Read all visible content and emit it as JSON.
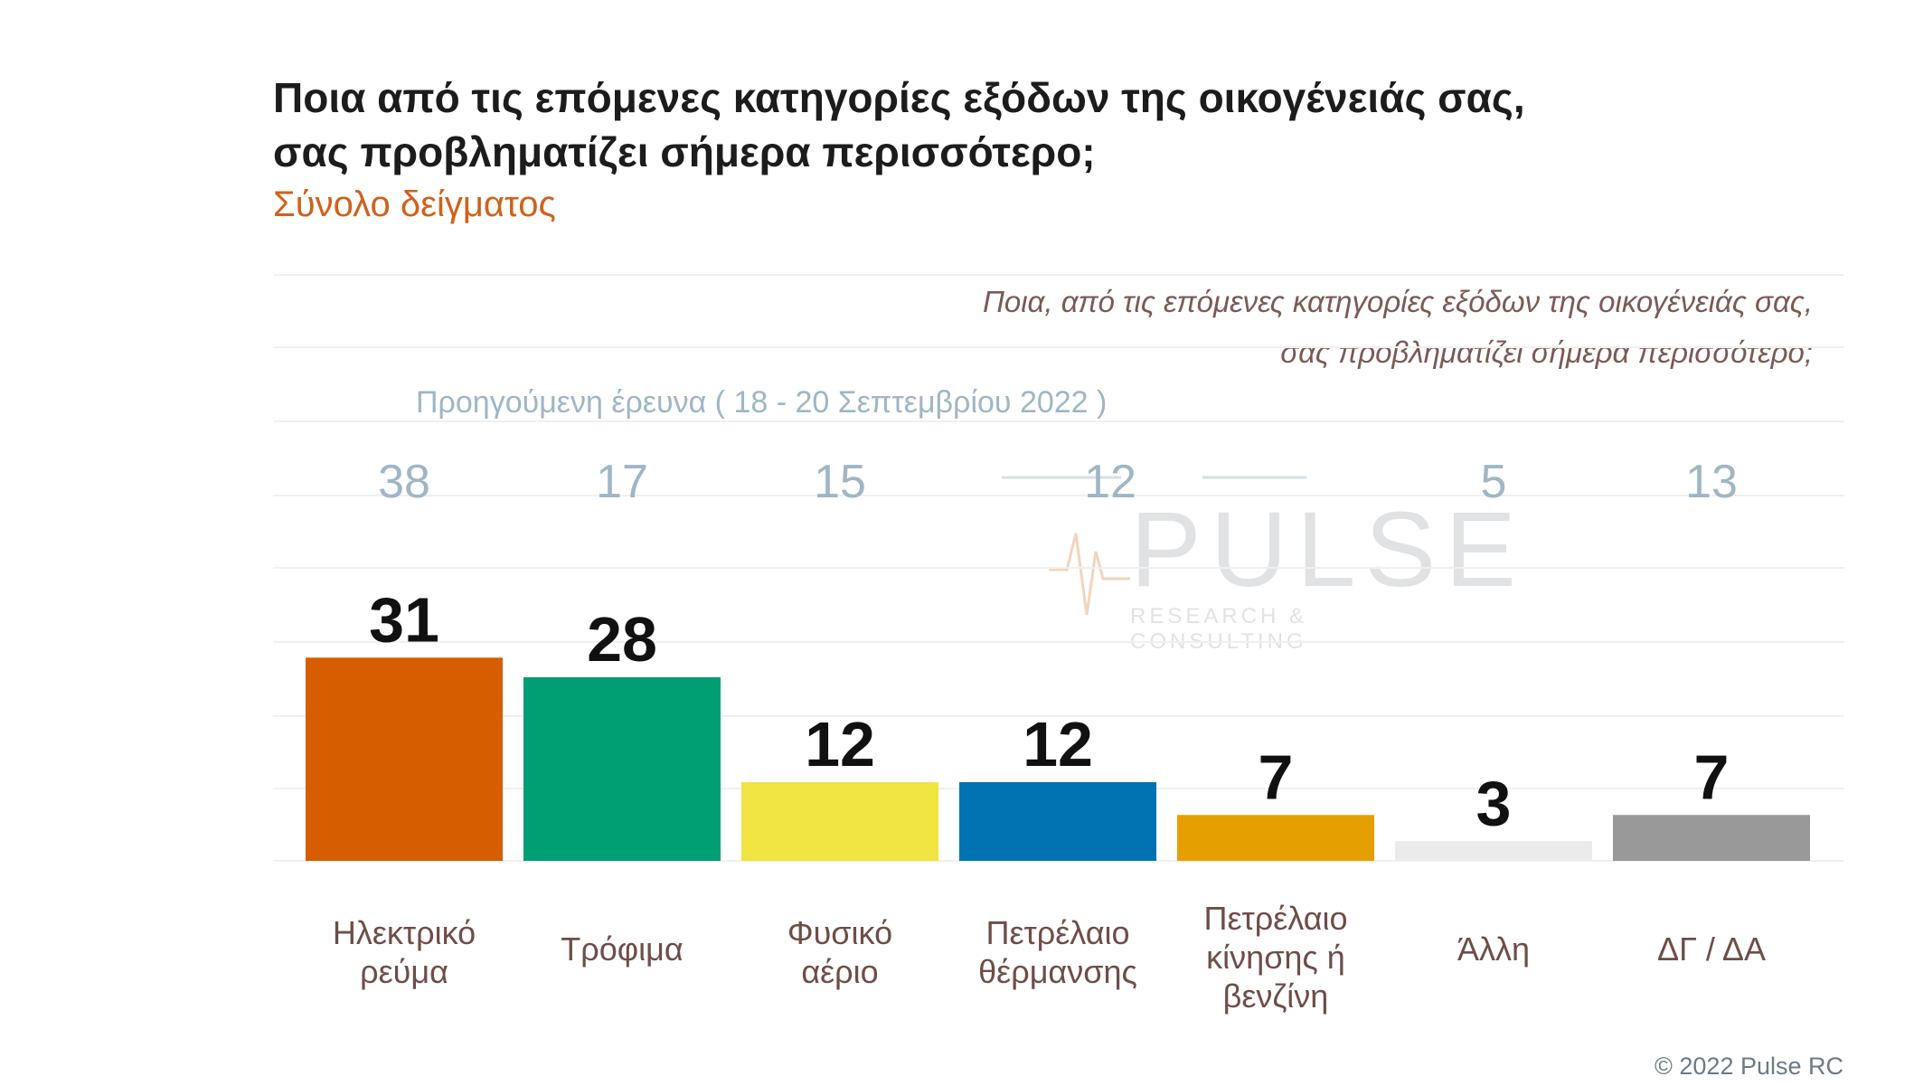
{
  "title_line1": "Ποια από τις επόμενες κατηγορίες εξόδων της οικογένειάς σας,",
  "title_line2": "σας προβληματίζει σήμερα περισσότερο;",
  "subtitle": "Σύνολο δείγματος",
  "question_line1": "Ποια, από τις επόμενες κατηγορίες εξόδων της οικογένειάς σας,",
  "question_line2": "σας προβληματίζει σήμερα περισσότερο;",
  "previous_survey_label": "Προηγούμενη έρευνα  ( 18 - 20 Σεπτεμβρίου  2022 )",
  "watermark": {
    "name": "PULSE",
    "tagline": "RESEARCH & CONSULTING"
  },
  "copyright": "© 2022 Pulse RC",
  "chart_data": {
    "type": "bar",
    "title": "Ποια από τις επόμενες κατηγορίες εξόδων της οικογένειάς σας, σας προβληματίζει σήμερα περισσότερο;",
    "categories": [
      [
        "Ηλεκτρικό",
        "ρεύμα"
      ],
      [
        "Τρόφιμα"
      ],
      [
        "Φυσικό",
        "αέριο"
      ],
      [
        "Πετρέλαιο",
        "θέρμανσης"
      ],
      [
        "Πετρέλαιο",
        "κίνησης ή",
        "βενζίνη"
      ],
      [
        "Άλλη"
      ],
      [
        "ΔΓ / ΔΑ"
      ]
    ],
    "values": [
      31,
      28,
      12,
      12,
      7,
      3,
      7
    ],
    "previous_values": [
      38,
      17,
      15,
      12,
      5,
      13
    ],
    "previous_all": [
      38,
      17,
      15,
      12,
      null,
      5,
      13
    ],
    "colors": [
      "#d65e00",
      "#009e73",
      "#efe441",
      "#0072b2",
      "#e69f00",
      "#ebebeb",
      "#999999"
    ],
    "ylim": [
      0,
      40
    ],
    "grid": true
  }
}
